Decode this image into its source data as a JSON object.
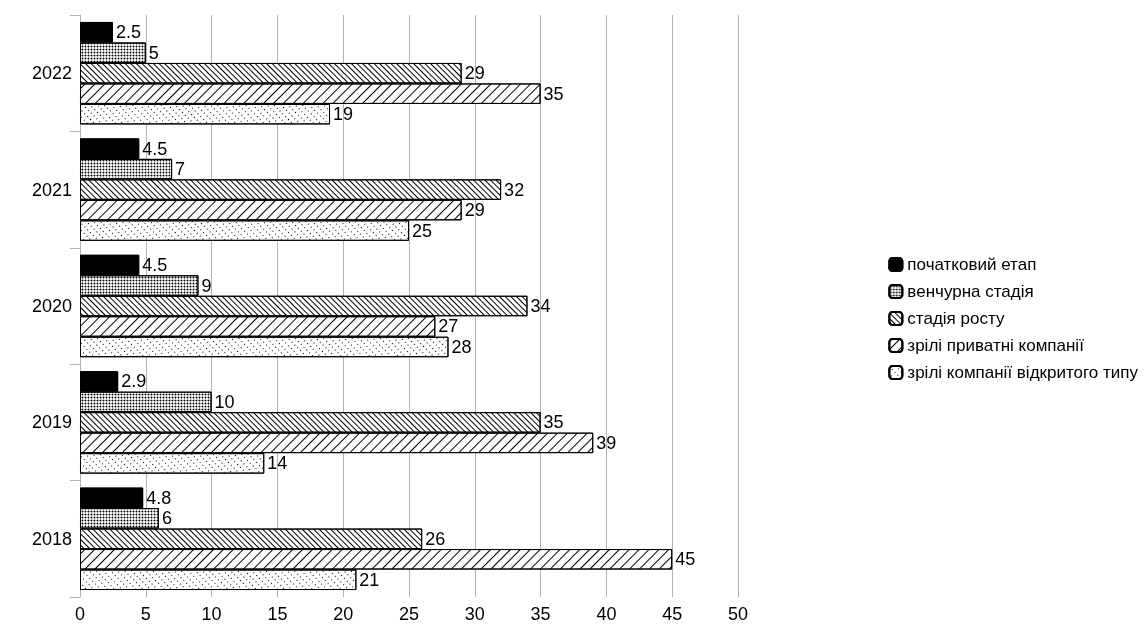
{
  "chart_data": {
    "type": "bar",
    "orientation": "horizontal",
    "categories": [
      "2022",
      "2021",
      "2020",
      "2019",
      "2018"
    ],
    "series": [
      {
        "name": "початковий етап",
        "color": "#000000",
        "values": [
          2.5,
          4.5,
          4.5,
          2.9,
          4.8
        ]
      },
      {
        "name": "венчурна стадія",
        "color": "#ffffff",
        "values": [
          5,
          7,
          9,
          10,
          6
        ]
      },
      {
        "name": "стадія росту",
        "color": "#ffffff",
        "values": [
          29,
          32,
          34,
          35,
          26
        ]
      },
      {
        "name": "зрілі приватні компанії",
        "color": "#ffffff",
        "values": [
          35,
          29,
          27,
          39,
          45
        ]
      },
      {
        "name": "зрілі компанії відкритого типу",
        "color": "#ffffff",
        "values": [
          19,
          25,
          28,
          14,
          21
        ]
      }
    ],
    "xlim": [
      0,
      50
    ],
    "xticks": [
      0,
      5,
      10,
      15,
      20,
      25,
      30,
      35,
      40,
      45,
      50
    ],
    "grid": "x",
    "legend": "right",
    "data_labels": true
  }
}
